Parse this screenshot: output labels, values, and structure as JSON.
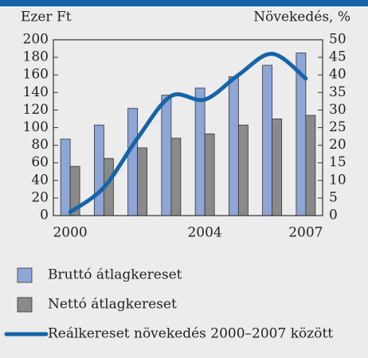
{
  "chart_data": {
    "type": "bar",
    "ylabel": "Ezer Ft",
    "y2label": "Növekedés, %",
    "categories": [
      "2000",
      null,
      null,
      null,
      "2004",
      null,
      null,
      "2007"
    ],
    "series": [
      {
        "name": "Bruttó átlagkereset",
        "color": "#8ea6d6",
        "values": [
          87,
          103,
          122,
          137,
          145,
          158,
          171,
          185
        ]
      },
      {
        "name": "Nettó átlagkereset",
        "color": "#8a8a8a",
        "values": [
          56,
          65,
          77,
          88,
          93,
          103,
          110,
          114
        ]
      },
      {
        "name": "Reálkereset növekedés 2000–2007 között",
        "color": "#1565a8",
        "type": "line",
        "axis": "y2",
        "values": [
          1,
          8,
          22,
          34,
          33,
          40,
          46,
          39
        ]
      }
    ],
    "ylim": [
      0,
      200
    ],
    "yticks": [
      0,
      20,
      40,
      60,
      80,
      100,
      120,
      140,
      160,
      180,
      200
    ],
    "y2lim": [
      0,
      50
    ],
    "y2ticks": [
      0,
      5,
      10,
      15,
      20,
      25,
      30,
      35,
      40,
      45,
      50
    ]
  }
}
